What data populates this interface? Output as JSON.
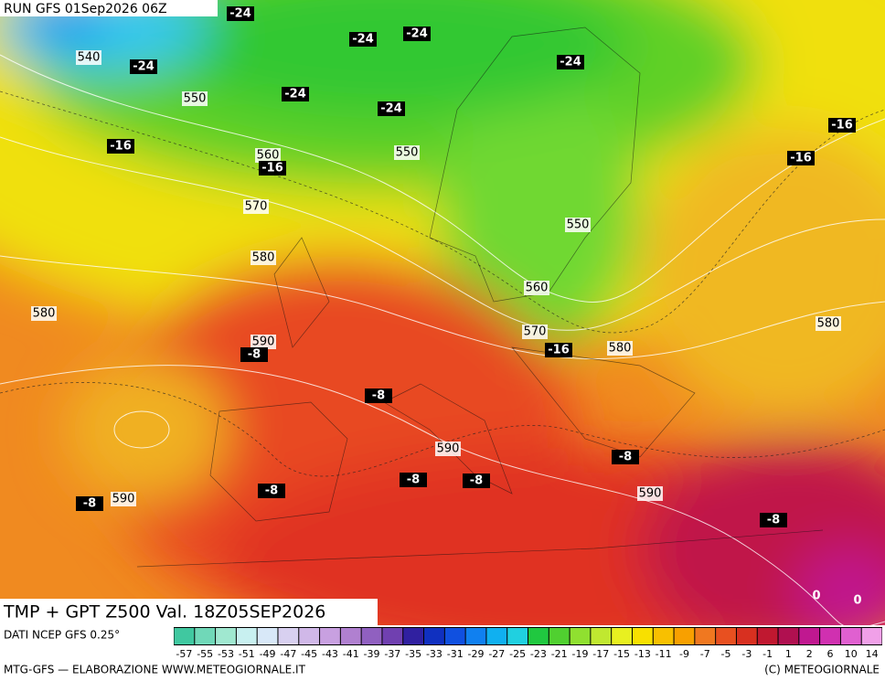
{
  "header": {
    "run": "RUN GFS 01Sep2026 06Z"
  },
  "map": {
    "title": "TMP + GPT Z500 Val. 18Z05SEP2026",
    "contour_labels": [
      540,
      550,
      560,
      570,
      580,
      580,
      590,
      550,
      550,
      560,
      570,
      580,
      580,
      590,
      590,
      590
    ],
    "temperature_labels": [
      -24,
      -24,
      -24,
      -24,
      -24,
      -24,
      -24,
      -16,
      -16,
      -16,
      -16,
      -16,
      -8,
      -8,
      -8,
      -8,
      -8,
      -8,
      -8,
      -8,
      0,
      0
    ]
  },
  "legend": {
    "source": "DATI NCEP GFS 0.25°",
    "labels": [
      -57,
      -55,
      -53,
      -51,
      -49,
      -47,
      -45,
      -43,
      -41,
      -39,
      -37,
      -35,
      -33,
      -31,
      -29,
      -27,
      -25,
      -23,
      -21,
      -19,
      -17,
      -15,
      -13,
      -11,
      -9,
      -7,
      -5,
      -3,
      -1,
      1,
      2,
      6,
      10,
      14
    ],
    "colors": [
      "#40c8a0",
      "#70d8b8",
      "#a0e8d0",
      "#c8f0f0",
      "#d8e8f8",
      "#d8d0f0",
      "#d0b8e8",
      "#c8a0e0",
      "#b080d0",
      "#9060c0",
      "#7040b0",
      "#3020a0",
      "#1030c0",
      "#1050e0",
      "#1080f0",
      "#10b0f0",
      "#20d0e0",
      "#20c840",
      "#50d030",
      "#90e030",
      "#c0e830",
      "#e8f020",
      "#f8e000",
      "#f8c000",
      "#f8a000",
      "#f07820",
      "#e85020",
      "#d83020",
      "#c01830",
      "#b01050",
      "#c01890",
      "#d030b0",
      "#e060d0",
      "#f0a0e8"
    ]
  },
  "footer": {
    "credit": "MTG-GFS — ELABORAZIONE WWW.METEOGIORNALE.IT",
    "copyright": "(C) METEOGIORNALE"
  }
}
